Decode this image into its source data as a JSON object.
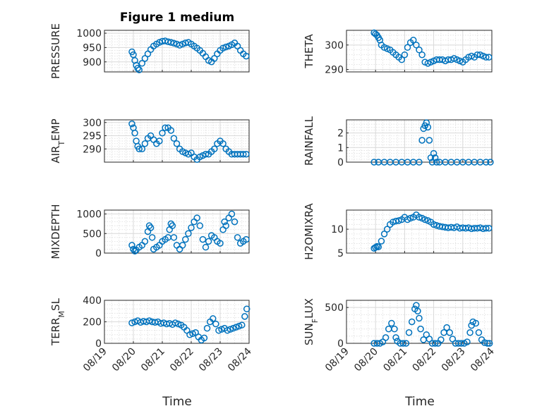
{
  "figure_title": "Figure 1 medium",
  "chart_data": [
    {
      "type": "scatter",
      "title": "Figure 1 medium",
      "ylabel": "PRESSURE",
      "xlabel": "",
      "ylim": [
        865,
        1010
      ],
      "yticks": [
        900,
        950,
        1000
      ],
      "xticks": [
        "08/19",
        "08/20",
        "08/21",
        "08/22",
        "08/23",
        "08/24"
      ],
      "xlim": [
        0,
        5
      ],
      "x": [
        0.95,
        1.0,
        1.05,
        1.1,
        1.15,
        1.2,
        1.3,
        1.4,
        1.5,
        1.6,
        1.7,
        1.8,
        1.9,
        2.0,
        2.1,
        2.2,
        2.3,
        2.4,
        2.5,
        2.6,
        2.7,
        2.8,
        2.9,
        3.0,
        3.1,
        3.2,
        3.3,
        3.4,
        3.5,
        3.6,
        3.7,
        3.8,
        3.9,
        4.0,
        4.1,
        4.2,
        4.3,
        4.4,
        4.5,
        4.6,
        4.7,
        4.8,
        4.9
      ],
      "y": [
        935,
        925,
        905,
        888,
        878,
        872,
        895,
        912,
        928,
        943,
        955,
        962,
        968,
        972,
        973,
        970,
        968,
        965,
        962,
        958,
        962,
        966,
        968,
        962,
        955,
        948,
        940,
        930,
        918,
        905,
        900,
        912,
        928,
        940,
        948,
        952,
        955,
        960,
        966,
        955,
        940,
        928,
        920
      ],
      "grid": true
    },
    {
      "type": "scatter",
      "title": "",
      "ylabel": "THETA",
      "xlabel": "",
      "ylim": [
        289,
        306
      ],
      "yticks": [
        290,
        300
      ],
      "xticks": [
        "08/19",
        "08/20",
        "08/21",
        "08/22",
        "08/23",
        "08/24"
      ],
      "xlim": [
        0,
        5
      ],
      "x": [
        0.95,
        1.0,
        1.05,
        1.1,
        1.15,
        1.2,
        1.3,
        1.4,
        1.5,
        1.6,
        1.7,
        1.8,
        1.9,
        2.0,
        2.1,
        2.2,
        2.3,
        2.4,
        2.5,
        2.6,
        2.7,
        2.8,
        2.9,
        3.0,
        3.1,
        3.2,
        3.3,
        3.4,
        3.5,
        3.6,
        3.7,
        3.8,
        3.9,
        4.0,
        4.1,
        4.2,
        4.3,
        4.4,
        4.5,
        4.6,
        4.7,
        4.8,
        4.9
      ],
      "y": [
        305,
        304.5,
        304,
        303,
        302,
        300,
        299,
        298.5,
        298,
        297,
        296,
        295,
        294,
        296,
        299,
        301,
        302,
        300,
        298,
        296,
        293,
        292.5,
        293,
        293.5,
        294,
        294,
        294,
        293.5,
        294,
        294,
        294.5,
        294,
        293.5,
        293,
        294,
        295,
        295.5,
        295,
        296,
        296,
        295.5,
        295,
        295
      ],
      "grid": true
    },
    {
      "type": "scatter",
      "title": "",
      "ylabel": "AIR_TEMP",
      "xlabel": "",
      "ylim": [
        285,
        301
      ],
      "yticks": [
        290,
        295,
        300
      ],
      "xticks": [
        "08/19",
        "08/20",
        "08/21",
        "08/22",
        "08/23",
        "08/24"
      ],
      "xlim": [
        0,
        5
      ],
      "x": [
        0.95,
        1.0,
        1.05,
        1.1,
        1.15,
        1.2,
        1.3,
        1.4,
        1.5,
        1.6,
        1.7,
        1.8,
        1.9,
        2.0,
        2.1,
        2.2,
        2.3,
        2.4,
        2.5,
        2.6,
        2.7,
        2.8,
        2.9,
        3.0,
        3.1,
        3.2,
        3.3,
        3.4,
        3.5,
        3.6,
        3.7,
        3.8,
        3.9,
        4.0,
        4.1,
        4.2,
        4.3,
        4.4,
        4.5,
        4.6,
        4.7,
        4.8,
        4.9
      ],
      "y": [
        299.5,
        298,
        296,
        293,
        291,
        290,
        290,
        292,
        294,
        295,
        293.5,
        292,
        293,
        296,
        298,
        298,
        297,
        294,
        292,
        290,
        289,
        288.5,
        288,
        288.5,
        287,
        286,
        287,
        287.5,
        288,
        288,
        289,
        290,
        292,
        293,
        292,
        290,
        289,
        288,
        288,
        288,
        288,
        288,
        288
      ],
      "grid": true
    },
    {
      "type": "scatter",
      "title": "",
      "ylabel": "RAINFALL",
      "xlabel": "",
      "ylim": [
        0,
        2.9
      ],
      "yticks": [
        0,
        1,
        2
      ],
      "xticks": [
        "08/19",
        "08/20",
        "08/21",
        "08/22",
        "08/23",
        "08/24"
      ],
      "xlim": [
        0,
        5
      ],
      "x": [
        0.95,
        1.1,
        1.3,
        1.5,
        1.7,
        1.9,
        2.1,
        2.3,
        2.5,
        2.6,
        2.65,
        2.7,
        2.75,
        2.8,
        2.85,
        2.9,
        2.95,
        3.0,
        3.05,
        3.1,
        3.2,
        3.4,
        3.6,
        3.8,
        4.0,
        4.2,
        4.4,
        4.6,
        4.8,
        4.95
      ],
      "y": [
        0,
        0,
        0,
        0,
        0,
        0,
        0,
        0,
        0,
        1.5,
        2.3,
        2.5,
        2.7,
        2.4,
        1.5,
        0.3,
        0,
        0.6,
        0.3,
        0,
        0,
        0,
        0,
        0,
        0,
        0,
        0,
        0,
        0,
        0
      ],
      "grid": true
    },
    {
      "type": "scatter",
      "title": "",
      "ylabel": "MIXDEPTH",
      "xlabel": "",
      "ylim": [
        0,
        1100
      ],
      "yticks": [
        0,
        500,
        1000
      ],
      "xticks": [
        "08/19",
        "08/20",
        "08/21",
        "08/22",
        "08/23",
        "08/24"
      ],
      "xlim": [
        0,
        5
      ],
      "x": [
        0.95,
        1.0,
        1.05,
        1.1,
        1.2,
        1.3,
        1.4,
        1.5,
        1.55,
        1.6,
        1.65,
        1.7,
        1.8,
        1.9,
        2.0,
        2.1,
        2.2,
        2.25,
        2.3,
        2.35,
        2.4,
        2.5,
        2.6,
        2.7,
        2.8,
        2.9,
        3.0,
        3.1,
        3.2,
        3.3,
        3.4,
        3.5,
        3.6,
        3.7,
        3.8,
        3.9,
        4.0,
        4.1,
        4.15,
        4.2,
        4.3,
        4.4,
        4.5,
        4.6,
        4.7,
        4.8,
        4.9
      ],
      "y": [
        200,
        100,
        50,
        80,
        150,
        200,
        300,
        550,
        700,
        650,
        400,
        100,
        150,
        200,
        300,
        350,
        400,
        600,
        750,
        700,
        400,
        200,
        100,
        200,
        350,
        500,
        650,
        800,
        900,
        700,
        350,
        150,
        300,
        450,
        400,
        300,
        250,
        600,
        800,
        700,
        900,
        1000,
        800,
        400,
        250,
        300,
        350
      ],
      "grid": true
    },
    {
      "type": "scatter",
      "title": "",
      "ylabel": "H2OMIXRA",
      "xlabel": "",
      "ylim": [
        5,
        14
      ],
      "yticks": [
        5,
        10
      ],
      "xticks": [
        "08/19",
        "08/20",
        "08/21",
        "08/22",
        "08/23",
        "08/24"
      ],
      "xlim": [
        0,
        5
      ],
      "x": [
        0.95,
        1.0,
        1.05,
        1.1,
        1.2,
        1.3,
        1.4,
        1.5,
        1.6,
        1.7,
        1.8,
        1.9,
        2.0,
        2.1,
        2.2,
        2.3,
        2.4,
        2.5,
        2.6,
        2.7,
        2.8,
        2.9,
        3.0,
        3.1,
        3.2,
        3.3,
        3.4,
        3.5,
        3.6,
        3.7,
        3.8,
        3.9,
        4.0,
        4.1,
        4.2,
        4.3,
        4.4,
        4.5,
        4.6,
        4.7,
        4.8,
        4.9
      ],
      "y": [
        6,
        6.2,
        6.4,
        6.3,
        7.5,
        9,
        10,
        11,
        11.5,
        11.7,
        11.8,
        12,
        12.5,
        12,
        12.3,
        12.5,
        13,
        12.5,
        12.3,
        12,
        11.8,
        11.5,
        11,
        10.8,
        10.6,
        10.5,
        10.4,
        10.3,
        10.4,
        10.3,
        10.5,
        10.2,
        10.3,
        10.2,
        10.3,
        10.1,
        10.2,
        10.2,
        10.3,
        10.1,
        10.2,
        10.2
      ],
      "grid": true
    },
    {
      "type": "scatter",
      "title": "",
      "ylabel": "TERR_MSL",
      "xlabel": "Time",
      "ylim": [
        0,
        400
      ],
      "yticks": [
        0,
        200,
        400
      ],
      "xticks": [
        "08/19",
        "08/20",
        "08/21",
        "08/22",
        "08/23",
        "08/24"
      ],
      "xlim": [
        0,
        5
      ],
      "x": [
        0.95,
        1.05,
        1.15,
        1.25,
        1.35,
        1.45,
        1.55,
        1.65,
        1.75,
        1.85,
        1.95,
        2.05,
        2.15,
        2.25,
        2.35,
        2.45,
        2.55,
        2.65,
        2.75,
        2.85,
        2.95,
        3.05,
        3.15,
        3.25,
        3.35,
        3.45,
        3.55,
        3.65,
        3.75,
        3.85,
        3.95,
        4.05,
        4.15,
        4.25,
        4.35,
        4.45,
        4.55,
        4.65,
        4.75,
        4.85,
        4.92
      ],
      "y": [
        190,
        200,
        210,
        195,
        205,
        200,
        210,
        200,
        195,
        200,
        185,
        190,
        180,
        185,
        175,
        190,
        180,
        170,
        150,
        120,
        80,
        90,
        100,
        60,
        30,
        50,
        140,
        200,
        230,
        180,
        120,
        130,
        140,
        120,
        130,
        140,
        150,
        160,
        170,
        250,
        320
      ],
      "grid": true
    },
    {
      "type": "scatter",
      "title": "",
      "ylabel": "SUN_FLUX",
      "xlabel": "Time",
      "ylim": [
        0,
        600
      ],
      "yticks": [
        0,
        500
      ],
      "xticks": [
        "08/19",
        "08/20",
        "08/21",
        "08/22",
        "08/23",
        "08/24"
      ],
      "xlim": [
        0,
        5
      ],
      "x": [
        0.95,
        1.05,
        1.15,
        1.25,
        1.35,
        1.45,
        1.55,
        1.65,
        1.7,
        1.75,
        1.85,
        1.95,
        2.05,
        2.15,
        2.25,
        2.35,
        2.4,
        2.45,
        2.5,
        2.55,
        2.65,
        2.75,
        2.85,
        2.95,
        3.05,
        3.15,
        3.25,
        3.35,
        3.45,
        3.55,
        3.65,
        3.75,
        3.85,
        3.95,
        4.05,
        4.15,
        4.25,
        4.3,
        4.35,
        4.45,
        4.55,
        4.65,
        4.75,
        4.85,
        4.92
      ],
      "y": [
        0,
        0,
        0,
        20,
        80,
        200,
        280,
        200,
        80,
        30,
        0,
        0,
        0,
        150,
        300,
        480,
        530,
        450,
        350,
        200,
        50,
        120,
        60,
        0,
        0,
        0,
        50,
        150,
        220,
        150,
        60,
        0,
        0,
        0,
        0,
        20,
        150,
        250,
        300,
        280,
        150,
        50,
        10,
        0,
        0
      ],
      "grid": true
    }
  ],
  "xaxis_label": "Time"
}
